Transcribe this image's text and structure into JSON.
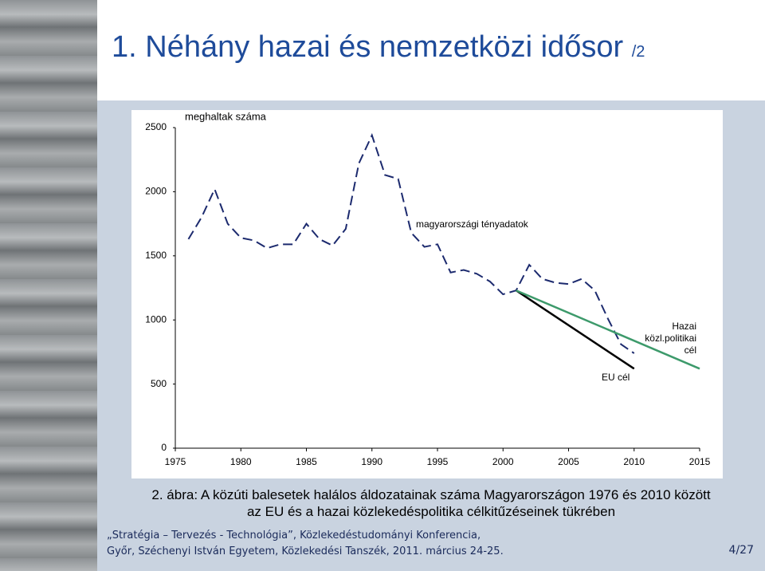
{
  "slide": {
    "title": "1. Néhány hazai és nemzetközi idősor",
    "title_suffix": "/2",
    "caption": [
      "2. ábra: A közúti balesetek halálos áldozatainak száma Magyarországon 1976 és 2010 között",
      "az EU és a hazai közlekedéspolitika célkitűzéseinek tükrében"
    ],
    "footer": [
      "„Stratégia – Tervezés - Technológia”, Közlekedéstudományi Konferencia,",
      "Győr, Széchenyi István Egyetem, Közlekedési Tanszék, 2011. március 24-25."
    ],
    "page": "4/27"
  },
  "chart_data": {
    "type": "line",
    "y_label": "meghaltak száma",
    "xlim": [
      1975,
      2015
    ],
    "xticks": [
      1975,
      1980,
      1985,
      1990,
      1995,
      2000,
      2005,
      2010,
      2015
    ],
    "ylim": [
      0,
      2500
    ],
    "yticks": [
      0,
      500,
      1000,
      1500,
      2000,
      2500
    ],
    "series": [
      {
        "name": "magyarországi tényadatok",
        "color": "#1c2a6e",
        "dashed": true,
        "x": [
          1976,
          1977,
          1978,
          1979,
          1980,
          1981,
          1982,
          1983,
          1984,
          1985,
          1986,
          1987,
          1988,
          1989,
          1990,
          1991,
          1992,
          1993,
          1994,
          1995,
          1996,
          1997,
          1998,
          1999,
          2000,
          2001,
          2002,
          2003,
          2004,
          2005,
          2006,
          2007,
          2008,
          2009,
          2010
        ],
        "values": [
          1630,
          1800,
          2020,
          1750,
          1640,
          1620,
          1560,
          1590,
          1590,
          1750,
          1630,
          1580,
          1710,
          2220,
          2440,
          2130,
          2100,
          1680,
          1570,
          1590,
          1370,
          1390,
          1360,
          1300,
          1200,
          1230,
          1430,
          1320,
          1290,
          1280,
          1320,
          1230,
          1010,
          810,
          740
        ]
      },
      {
        "name": "EU cél",
        "color": "#000000",
        "dashed": false,
        "x": [
          2001,
          2010
        ],
        "values": [
          1230,
          620
        ]
      },
      {
        "name": "Hazai közl.politikai cél",
        "color": "#3d9a6b",
        "dashed": false,
        "x": [
          2001,
          2015
        ],
        "values": [
          1230,
          620
        ]
      }
    ]
  }
}
